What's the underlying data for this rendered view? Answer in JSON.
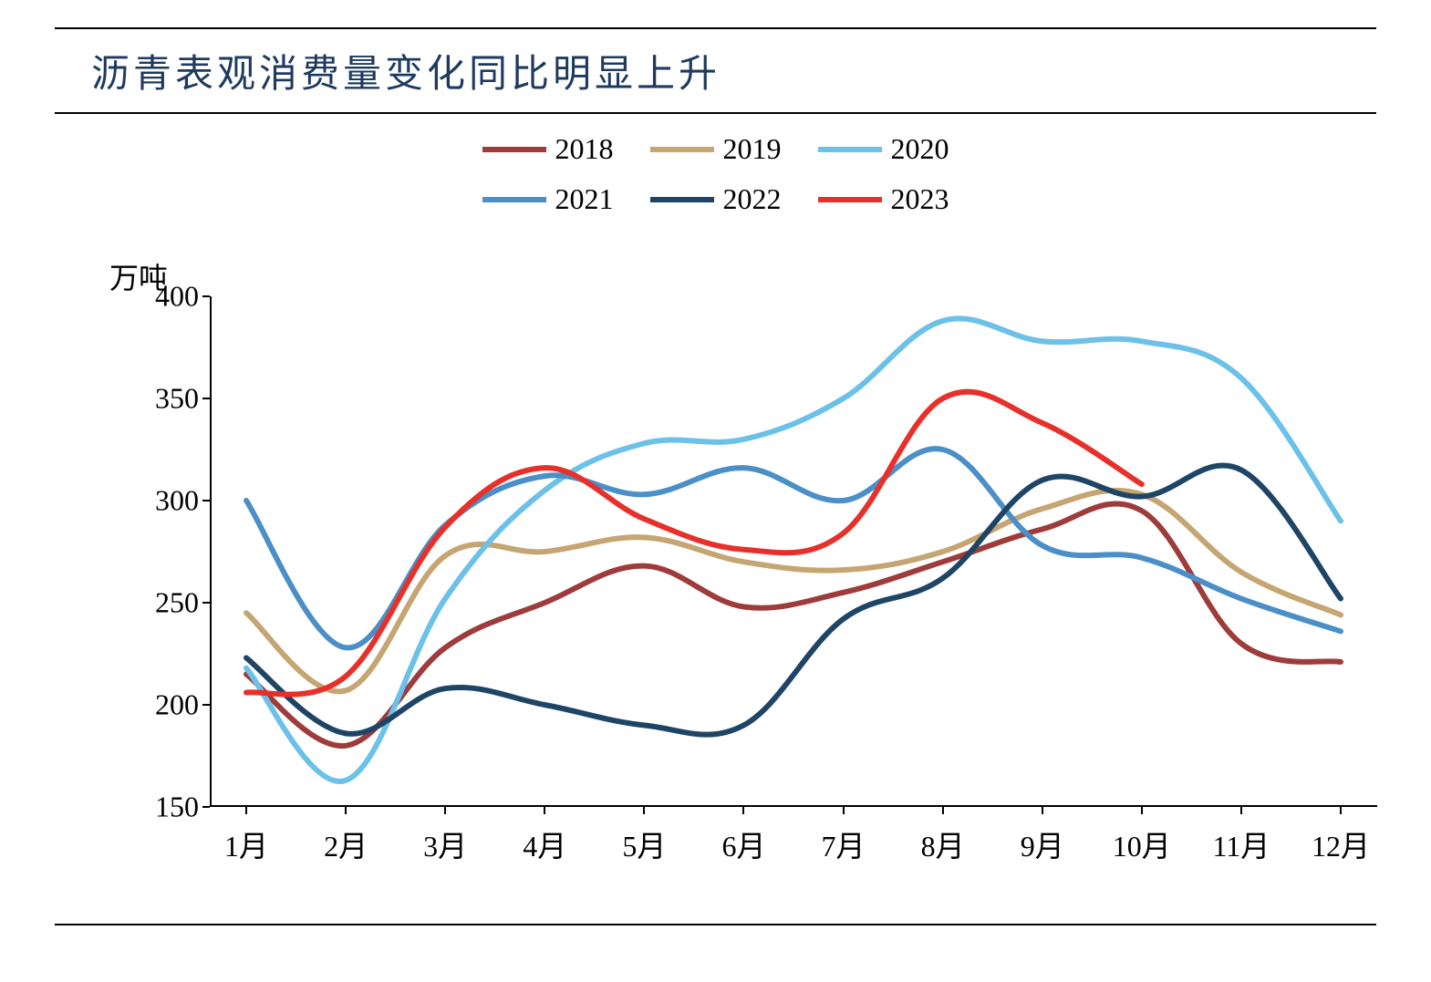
{
  "title": "沥青表观消费量变化同比明显上升",
  "chart": {
    "type": "line",
    "y_axis_label": "万吨",
    "background_color": "#ffffff",
    "axis_color": "#000000",
    "title_color": "#1e3a5f",
    "title_fontsize": 42,
    "label_fontsize": 32,
    "tick_fontsize": 32,
    "line_width": 6,
    "ylim": [
      150,
      400
    ],
    "ytick_step": 50,
    "yticks": [
      150,
      200,
      250,
      300,
      350,
      400
    ],
    "categories": [
      "1月",
      "2月",
      "3月",
      "4月",
      "5月",
      "6月",
      "7月",
      "8月",
      "9月",
      "10月",
      "11月",
      "12月"
    ],
    "series": [
      {
        "name": "2018",
        "color": "#9e3b3b",
        "values": [
          215,
          180,
          228,
          250,
          268,
          248,
          255,
          270,
          286,
          295,
          230,
          221
        ]
      },
      {
        "name": "2019",
        "color": "#c5a572",
        "values": [
          245,
          207,
          273,
          275,
          282,
          270,
          266,
          275,
          296,
          303,
          265,
          244
        ]
      },
      {
        "name": "2020",
        "color": "#6bc1e8",
        "values": [
          218,
          163,
          252,
          305,
          328,
          330,
          350,
          388,
          378,
          378,
          360,
          290
        ]
      },
      {
        "name": "2021",
        "color": "#4a8fc7",
        "values": [
          300,
          228,
          288,
          312,
          303,
          316,
          300,
          325,
          278,
          272,
          252,
          236
        ]
      },
      {
        "name": "2022",
        "color": "#1e4466",
        "values": [
          223,
          186,
          208,
          200,
          190,
          190,
          242,
          262,
          310,
          302,
          315,
          252
        ]
      },
      {
        "name": "2023",
        "color": "#e8302a",
        "values": [
          206,
          214,
          287,
          316,
          291,
          276,
          284,
          350,
          338,
          308
        ]
      }
    ],
    "legend": {
      "rows": [
        [
          0,
          1,
          2
        ],
        [
          3,
          4,
          5
        ]
      ]
    }
  }
}
